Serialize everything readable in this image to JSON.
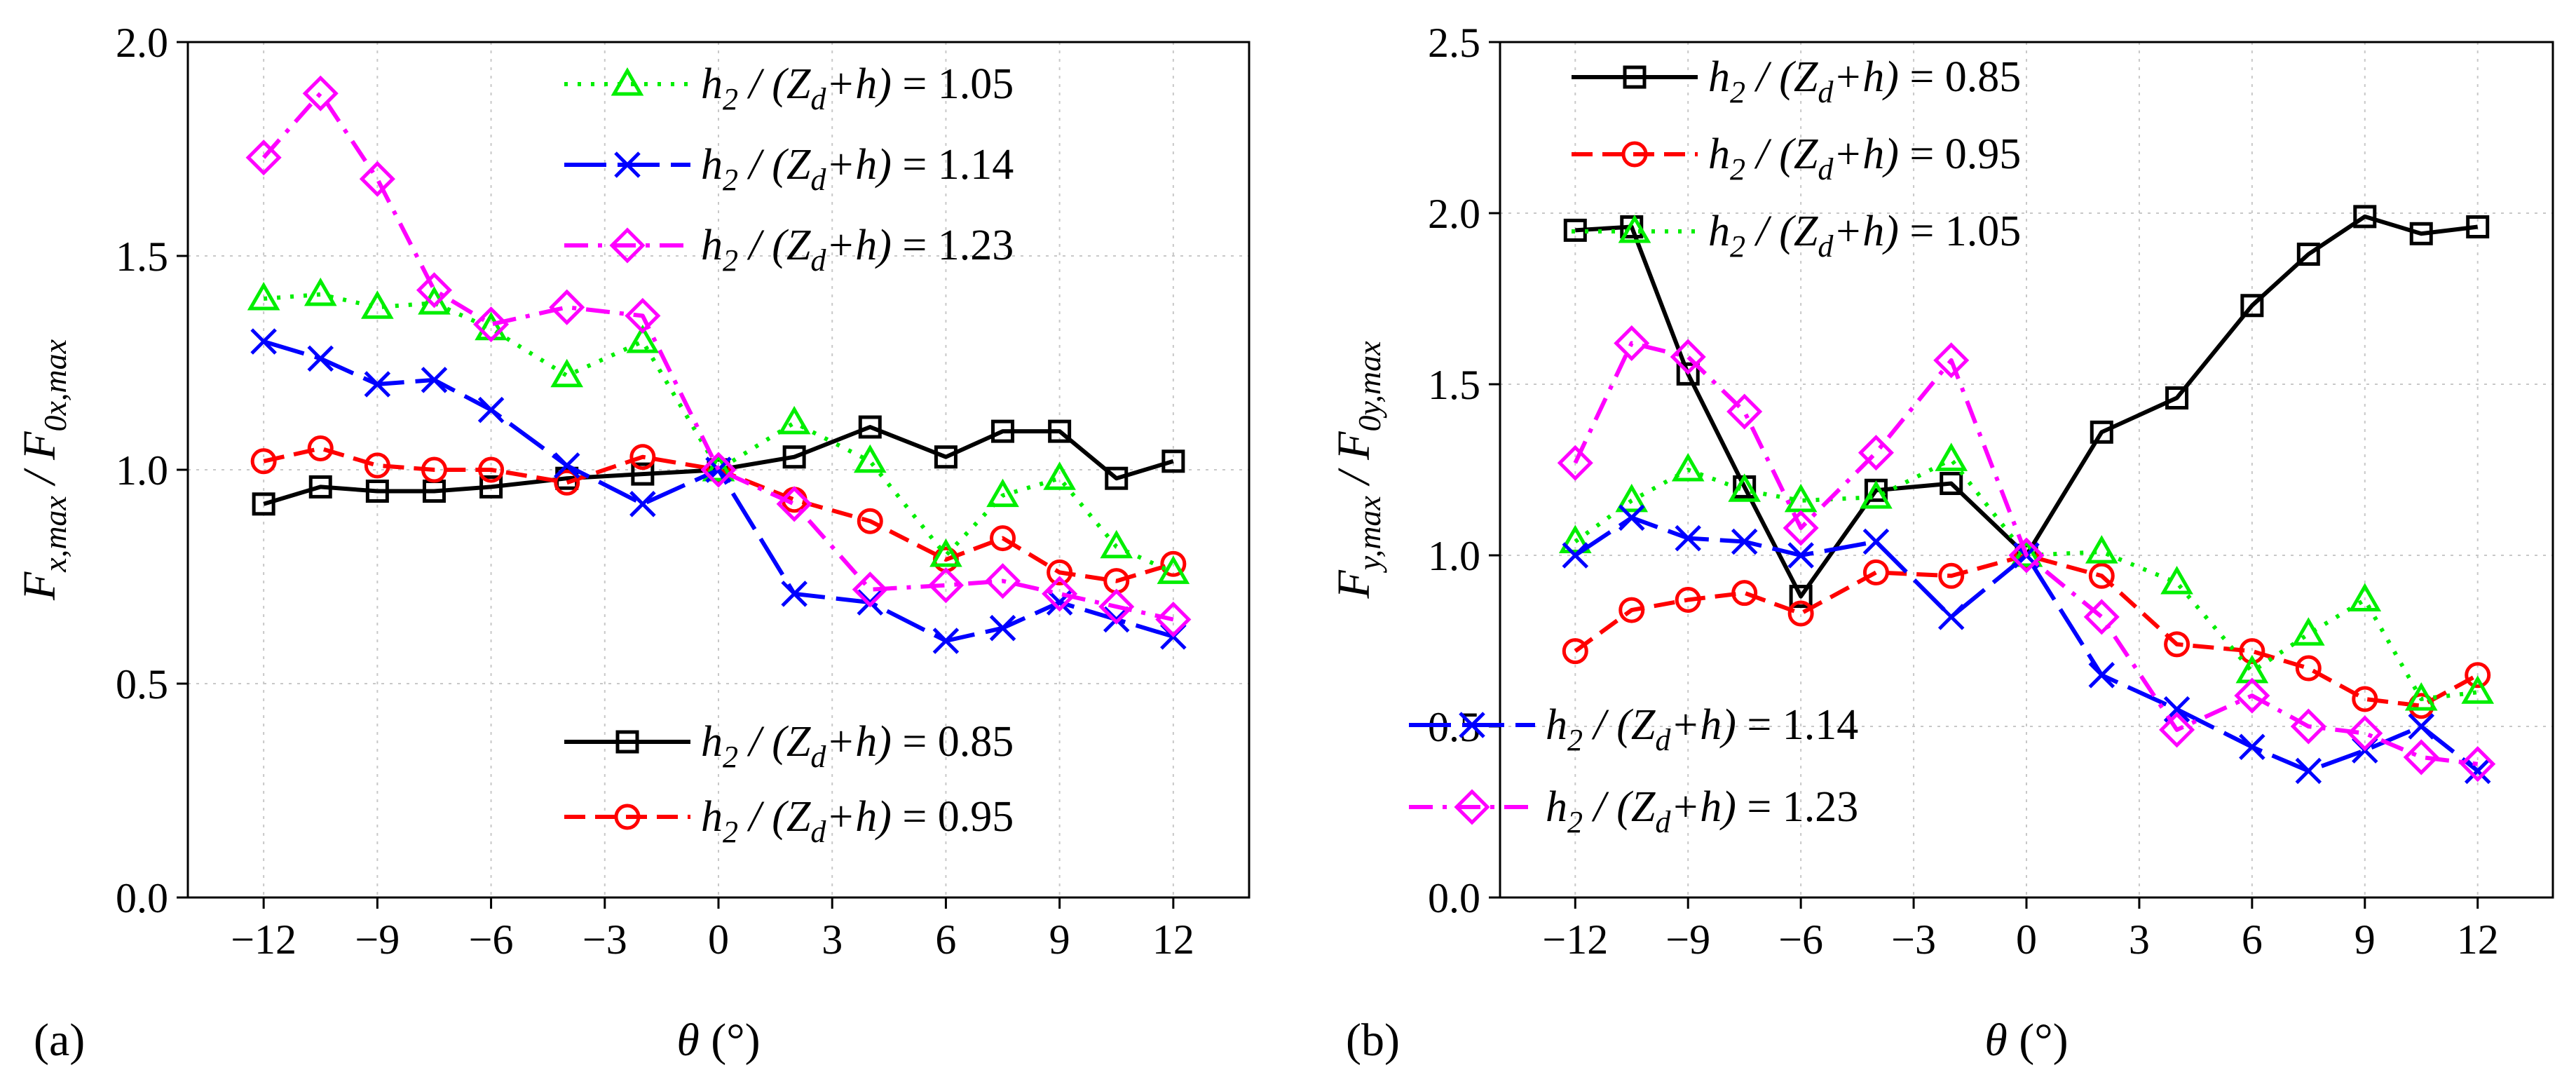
{
  "chart_data": [
    {
      "panel": "(a)",
      "type": "line",
      "xlabel": "θ (°)",
      "ylabel_main": "F",
      "ylabel_sub1": "x,max",
      "ylabel_mid": " / F",
      "ylabel_sub2": "0x,max",
      "xlim": [
        -14,
        14
      ],
      "ylim": [
        0.0,
        2.0
      ],
      "xticks": [
        -12,
        -9,
        -6,
        -3,
        0,
        3,
        6,
        9,
        12
      ],
      "xtick_labels": [
        "−12",
        "−9",
        "−6",
        "−3",
        "0",
        "3",
        "6",
        "9",
        "12"
      ],
      "yticks": [
        0.0,
        0.5,
        1.0,
        1.5,
        2.0
      ],
      "ytick_labels": [
        "0.0",
        "0.5",
        "1.0",
        "1.5",
        "2.0"
      ],
      "grid": true,
      "x": [
        -12,
        -10.5,
        -9,
        -7.5,
        -6,
        -4,
        -2,
        0,
        2,
        4,
        6,
        7.5,
        9,
        10.5,
        12
      ],
      "series": [
        {
          "name": "h2/(Zd+h) = 0.85",
          "value_text": " = 0.85",
          "color": "#000000",
          "marker": "square",
          "dash": "solid",
          "values": [
            0.92,
            0.96,
            0.95,
            0.95,
            0.96,
            0.98,
            0.99,
            1.0,
            1.03,
            1.1,
            1.03,
            1.09,
            1.09,
            0.98,
            1.02
          ]
        },
        {
          "name": "h2/(Zd+h) = 0.95",
          "value_text": " = 0.95",
          "color": "#ff0000",
          "marker": "circle",
          "dash": "dash",
          "values": [
            1.02,
            1.05,
            1.01,
            1.0,
            1.0,
            0.97,
            1.03,
            1.0,
            0.93,
            0.88,
            0.79,
            0.84,
            0.76,
            0.74,
            0.78
          ]
        },
        {
          "name": "h2/(Zd+h) = 1.05",
          "value_text": " = 1.05",
          "color": "#00ee00",
          "marker": "triangle",
          "dash": "dot",
          "values": [
            1.4,
            1.41,
            1.38,
            1.39,
            1.33,
            1.22,
            1.3,
            1.0,
            1.11,
            1.02,
            0.8,
            0.94,
            0.98,
            0.82,
            0.76
          ]
        },
        {
          "name": "h2/(Zd+h) = 1.14",
          "value_text": " = 1.14",
          "color": "#0000ff",
          "marker": "x",
          "dash": "longdash",
          "values": [
            1.3,
            1.26,
            1.2,
            1.21,
            1.14,
            1.01,
            0.92,
            1.0,
            0.71,
            0.69,
            0.6,
            0.63,
            0.69,
            0.65,
            0.61
          ]
        },
        {
          "name": "h2/(Zd+h) = 1.23",
          "value_text": " = 1.23",
          "color": "#ff00ff",
          "marker": "diamond",
          "dash": "dashdot",
          "values": [
            1.73,
            1.88,
            1.68,
            1.42,
            1.34,
            1.38,
            1.36,
            1.0,
            0.92,
            0.72,
            0.73,
            0.74,
            0.71,
            0.68,
            0.65
          ]
        }
      ],
      "legend_groups": [
        {
          "position": "top-right",
          "series": [
            2,
            3,
            4
          ]
        },
        {
          "position": "bottom-right",
          "series": [
            0,
            1
          ]
        }
      ]
    },
    {
      "panel": "(b)",
      "type": "line",
      "xlabel": "θ (°)",
      "ylabel_main": "F",
      "ylabel_sub1": "y,max",
      "ylabel_mid": " / F",
      "ylabel_sub2": "0y,max",
      "xlim": [
        -14,
        14
      ],
      "ylim": [
        0.0,
        2.5
      ],
      "xticks": [
        -12,
        -9,
        -6,
        -3,
        0,
        3,
        6,
        9,
        12
      ],
      "xtick_labels": [
        "−12",
        "−9",
        "−6",
        "−3",
        "0",
        "3",
        "6",
        "9",
        "12"
      ],
      "yticks": [
        0.0,
        0.5,
        1.0,
        1.5,
        2.0,
        2.5
      ],
      "ytick_labels": [
        "0.0",
        "0.5",
        "1.0",
        "1.5",
        "2.0",
        "2.5"
      ],
      "grid": true,
      "x": [
        -12,
        -10.5,
        -9,
        -7.5,
        -6,
        -4,
        -2,
        0,
        2,
        4,
        6,
        7.5,
        9,
        10.5,
        12
      ],
      "series": [
        {
          "name": "h2/(Zd+h) = 0.85",
          "value_text": " = 0.85",
          "color": "#000000",
          "marker": "square",
          "dash": "solid",
          "values": [
            1.95,
            1.96,
            1.53,
            1.2,
            0.88,
            1.19,
            1.21,
            1.0,
            1.36,
            1.46,
            1.73,
            1.88,
            1.99,
            1.94,
            1.96
          ]
        },
        {
          "name": "h2/(Zd+h) = 0.95",
          "value_text": " = 0.95",
          "color": "#ff0000",
          "marker": "circle",
          "dash": "dash",
          "values": [
            0.72,
            0.84,
            0.87,
            0.89,
            0.83,
            0.95,
            0.94,
            1.0,
            0.94,
            0.74,
            0.72,
            0.67,
            0.58,
            0.56,
            0.65
          ]
        },
        {
          "name": "h2/(Zd+h) = 1.05",
          "value_text": " = 1.05",
          "color": "#00ee00",
          "marker": "triangle",
          "dash": "dot",
          "values": [
            1.04,
            1.16,
            1.25,
            1.19,
            1.16,
            1.17,
            1.28,
            1.0,
            1.01,
            0.92,
            0.66,
            0.77,
            0.87,
            0.58,
            0.6
          ]
        },
        {
          "name": "h2/(Zd+h) = 1.14",
          "value_text": " = 1.14",
          "color": "#0000ff",
          "marker": "x",
          "dash": "longdash",
          "values": [
            1.0,
            1.11,
            1.05,
            1.04,
            1.0,
            1.04,
            0.82,
            1.0,
            0.65,
            0.55,
            0.44,
            0.37,
            0.43,
            0.5,
            0.37
          ]
        },
        {
          "name": "h2/(Zd+h) = 1.23",
          "value_text": " = 1.23",
          "color": "#ff00ff",
          "marker": "diamond",
          "dash": "dashdot",
          "values": [
            1.27,
            1.62,
            1.58,
            1.42,
            1.08,
            1.3,
            1.57,
            1.0,
            0.82,
            0.49,
            0.59,
            0.5,
            0.48,
            0.41,
            0.39
          ]
        }
      ],
      "legend_groups": [
        {
          "position": "top-left",
          "series": [
            0,
            1,
            2
          ]
        },
        {
          "position": "bottom-left",
          "series": [
            3,
            4
          ]
        }
      ]
    }
  ],
  "legend_label": {
    "h": "h",
    "h_sub": "2",
    "frac": " / (Z",
    "z_sub": "d",
    "tail": "+h)"
  },
  "figure": {
    "grid_color": "#c8c8c8"
  }
}
